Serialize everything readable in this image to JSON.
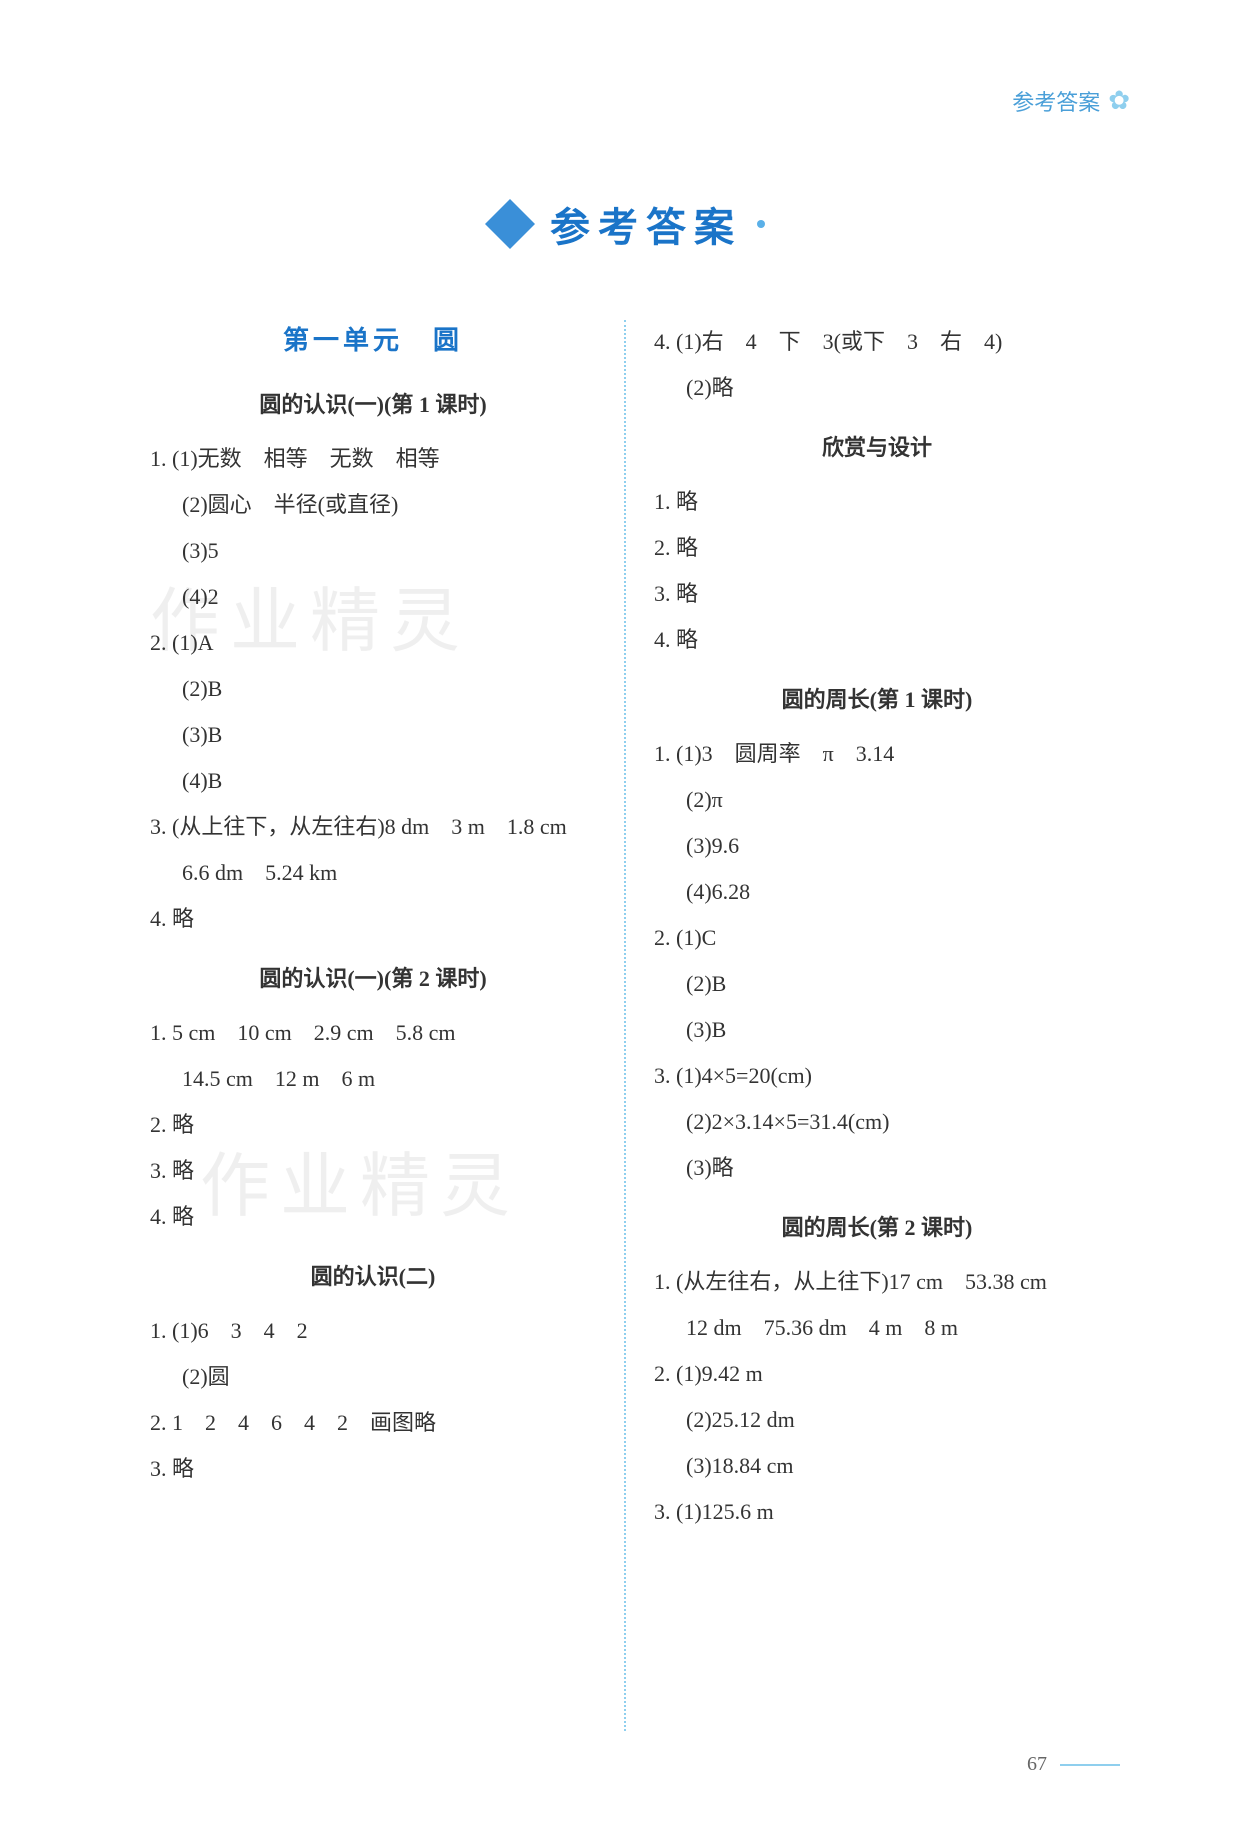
{
  "header": {
    "text": "参考答案",
    "decoration": "✿"
  },
  "mainTitle": "参考答案",
  "unitTitle": "第一单元　圆",
  "watermark": "作业精灵",
  "pageNumber": "67",
  "leftColumn": {
    "sections": [
      {
        "title": "圆的认识(一)(第 1 课时)",
        "lines": [
          {
            "text": "1. (1)无数　相等　无数　相等",
            "indent": false
          },
          {
            "text": "(2)圆心　半径(或直径)",
            "indent": true
          },
          {
            "text": "(3)5",
            "indent": true
          },
          {
            "text": "(4)2",
            "indent": true
          },
          {
            "text": "2. (1)A",
            "indent": false
          },
          {
            "text": "(2)B",
            "indent": true
          },
          {
            "text": "(3)B",
            "indent": true
          },
          {
            "text": "(4)B",
            "indent": true
          },
          {
            "text": "3. (从上往下，从左往右)8 dm　3 m　1.8 cm",
            "indent": false
          },
          {
            "text": "6.6 dm　5.24 km",
            "indent": true
          },
          {
            "text": "4. 略",
            "indent": false
          }
        ]
      },
      {
        "title": "圆的认识(一)(第 2 课时)",
        "lines": [
          {
            "text": "1. 5 cm　10 cm　2.9 cm　5.8 cm",
            "indent": false
          },
          {
            "text": "14.5 cm　12 m　6 m",
            "indent": true
          },
          {
            "text": "2. 略",
            "indent": false
          },
          {
            "text": "3. 略",
            "indent": false
          },
          {
            "text": "4. 略",
            "indent": false
          }
        ]
      },
      {
        "title": "圆的认识(二)",
        "lines": [
          {
            "text": "1. (1)6　3　4　2",
            "indent": false
          },
          {
            "text": "(2)圆",
            "indent": true
          },
          {
            "text": "2. 1　2　4　6　4　2　画图略",
            "indent": false
          },
          {
            "text": "3. 略",
            "indent": false
          }
        ]
      }
    ]
  },
  "rightColumn": {
    "topLines": [
      {
        "text": "4. (1)右　4　下　3(或下　3　右　4)",
        "indent": false
      },
      {
        "text": "(2)略",
        "indent": true
      }
    ],
    "sections": [
      {
        "title": "欣赏与设计",
        "lines": [
          {
            "text": "1. 略",
            "indent": false
          },
          {
            "text": "2. 略",
            "indent": false
          },
          {
            "text": "3. 略",
            "indent": false
          },
          {
            "text": "4. 略",
            "indent": false
          }
        ]
      },
      {
        "title": "圆的周长(第 1 课时)",
        "lines": [
          {
            "text": "1. (1)3　圆周率　π　3.14",
            "indent": false
          },
          {
            "text": "(2)π",
            "indent": true
          },
          {
            "text": "(3)9.6",
            "indent": true
          },
          {
            "text": "(4)6.28",
            "indent": true
          },
          {
            "text": "2. (1)C",
            "indent": false
          },
          {
            "text": "(2)B",
            "indent": true
          },
          {
            "text": "(3)B",
            "indent": true
          },
          {
            "text": "3. (1)4×5=20(cm)",
            "indent": false
          },
          {
            "text": "(2)2×3.14×5=31.4(cm)",
            "indent": true
          },
          {
            "text": "(3)略",
            "indent": true
          }
        ]
      },
      {
        "title": "圆的周长(第 2 课时)",
        "lines": [
          {
            "text": "1. (从左往右，从上往下)17 cm　53.38 cm",
            "indent": false
          },
          {
            "text": "12 dm　75.36 dm　4 m　8 m",
            "indent": true
          },
          {
            "text": "2. (1)9.42 m",
            "indent": false
          },
          {
            "text": "(2)25.12 dm",
            "indent": true
          },
          {
            "text": "(3)18.84 cm",
            "indent": true
          },
          {
            "text": "3. (1)125.6 m",
            "indent": false
          }
        ]
      }
    ]
  }
}
